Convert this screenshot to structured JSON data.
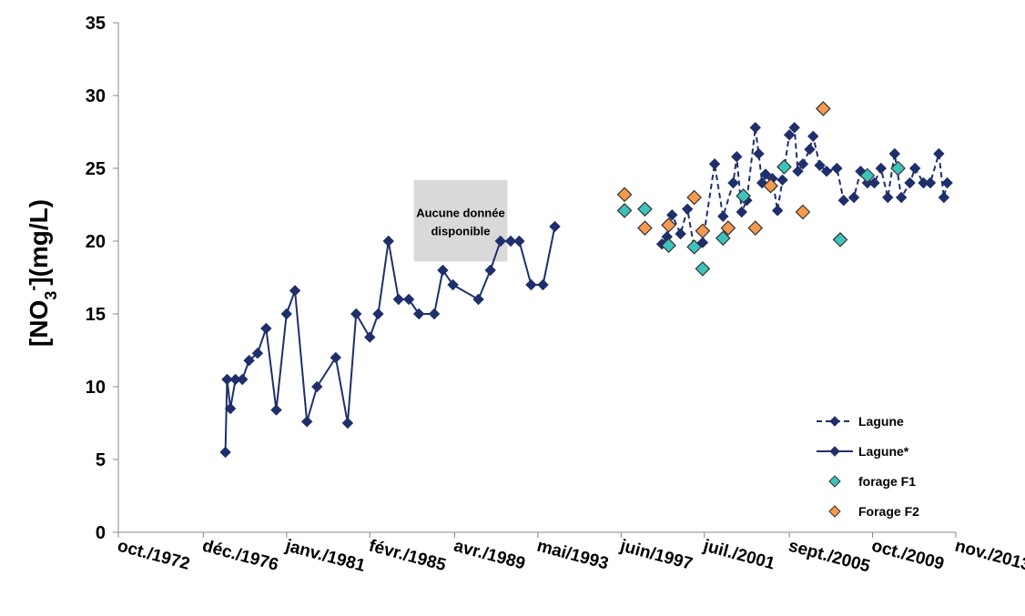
{
  "chart_data": {
    "type": "scatter",
    "title": "",
    "xlabel": "",
    "ylabel": "[NO3-](mg/L)",
    "ylabel_parts": {
      "pre": "[NO",
      "sub": "3",
      "sup": "-",
      "post": "](mg/L)"
    },
    "ylim": [
      0,
      35
    ],
    "yticks": [
      0,
      5,
      10,
      15,
      20,
      25,
      30,
      35
    ],
    "xlim": [
      "1972-10-01",
      "2013-11-01"
    ],
    "xticks": [
      {
        "date": "1972-10-01",
        "label": "oct./1972"
      },
      {
        "date": "1976-12-01",
        "label": "déc./1976"
      },
      {
        "date": "1981-01-01",
        "label": "janv./1981"
      },
      {
        "date": "1985-02-01",
        "label": "févr./1985"
      },
      {
        "date": "1989-04-01",
        "label": "avr./1989"
      },
      {
        "date": "1993-05-01",
        "label": "mai/1993"
      },
      {
        "date": "1997-06-01",
        "label": "juin/1997"
      },
      {
        "date": "2001-07-01",
        "label": "juil./2001"
      },
      {
        "date": "2005-09-01",
        "label": "sept./2005"
      },
      {
        "date": "2009-10-01",
        "label": "oct./2009"
      },
      {
        "date": "2013-11-01",
        "label": "nov./2013"
      }
    ],
    "grid": false,
    "legend_position": "bottom-right",
    "annotation": {
      "line1": "Aucune donnée",
      "line2": "disponible",
      "from": "1987-04-01",
      "to": "1991-11-01",
      "y_top": 24.2,
      "y_bottom": 18.6
    },
    "series": [
      {
        "name": "Lagune",
        "style": "dashed-line-diamond",
        "color": "#1F2F6B",
        "points": [
          [
            "1999-06-01",
            19.8
          ],
          [
            "1999-09-01",
            20.3
          ],
          [
            "1999-12-01",
            21.8
          ],
          [
            "2000-05-01",
            20.5
          ],
          [
            "2000-09-01",
            22.2
          ],
          [
            "2001-01-01",
            19.5
          ],
          [
            "2001-06-01",
            19.9
          ],
          [
            "2002-01-01",
            25.3
          ],
          [
            "2002-06-01",
            21.7
          ],
          [
            "2002-12-01",
            24.0
          ],
          [
            "2003-02-01",
            25.8
          ],
          [
            "2003-05-01",
            22.0
          ],
          [
            "2003-08-01",
            22.8
          ],
          [
            "2004-01-01",
            27.8
          ],
          [
            "2004-03-01",
            26.0
          ],
          [
            "2004-05-01",
            24.0
          ],
          [
            "2004-07-01",
            24.6
          ],
          [
            "2004-09-01",
            23.8
          ],
          [
            "2004-11-01",
            24.3
          ],
          [
            "2005-02-01",
            22.1
          ],
          [
            "2005-05-01",
            24.2
          ],
          [
            "2005-09-01",
            27.3
          ],
          [
            "2005-12-01",
            27.8
          ],
          [
            "2006-02-01",
            24.8
          ],
          [
            "2006-05-01",
            25.3
          ],
          [
            "2006-09-01",
            26.3
          ],
          [
            "2006-11-01",
            27.2
          ],
          [
            "2007-03-01",
            25.2
          ],
          [
            "2007-07-01",
            24.8
          ],
          [
            "2008-01-01",
            25.0
          ],
          [
            "2008-05-01",
            22.8
          ],
          [
            "2008-11-01",
            23.0
          ],
          [
            "2009-03-01",
            24.8
          ],
          [
            "2009-07-01",
            24.0
          ],
          [
            "2009-11-01",
            24.0
          ],
          [
            "2010-03-01",
            25.0
          ],
          [
            "2010-07-01",
            23.0
          ],
          [
            "2010-11-01",
            26.0
          ],
          [
            "2011-03-01",
            23.0
          ],
          [
            "2011-08-01",
            24.0
          ],
          [
            "2011-11-01",
            25.0
          ],
          [
            "2012-04-01",
            24.0
          ],
          [
            "2012-08-01",
            24.0
          ],
          [
            "2013-01-01",
            26.0
          ],
          [
            "2013-04-01",
            23.0
          ],
          [
            "2013-06-01",
            24.0
          ]
        ]
      },
      {
        "name": "Lagune*",
        "style": "solid-line-diamond",
        "color": "#1F2F6B",
        "points": [
          [
            "1978-01-01",
            5.5
          ],
          [
            "1978-02-01",
            10.5
          ],
          [
            "1978-04-01",
            8.5
          ],
          [
            "1978-07-01",
            10.5
          ],
          [
            "1978-11-01",
            10.5
          ],
          [
            "1979-03-01",
            11.8
          ],
          [
            "1979-08-01",
            12.3
          ],
          [
            "1980-01-01",
            14.0
          ],
          [
            "1980-07-01",
            8.4
          ],
          [
            "1981-01-01",
            15.0
          ],
          [
            "1981-06-01",
            16.6
          ],
          [
            "1982-01-01",
            7.6
          ],
          [
            "1982-07-01",
            10.0
          ],
          [
            "1983-06-01",
            12.0
          ],
          [
            "1984-01-01",
            7.5
          ],
          [
            "1984-06-01",
            15.0
          ],
          [
            "1985-02-01",
            13.4
          ],
          [
            "1985-07-01",
            15.0
          ],
          [
            "1986-01-01",
            20.0
          ],
          [
            "1986-07-01",
            16.0
          ],
          [
            "1987-01-01",
            16.0
          ],
          [
            "1987-07-01",
            15.0
          ],
          [
            "1988-04-01",
            15.0
          ],
          [
            "1988-09-01",
            18.0
          ],
          [
            "1989-03-01",
            17.0
          ],
          [
            "1990-06-01",
            16.0
          ],
          [
            "1991-01-01",
            18.0
          ],
          [
            "1991-07-01",
            20.0
          ],
          [
            "1992-01-01",
            20.0
          ],
          [
            "1992-06-01",
            20.0
          ],
          [
            "1993-01-01",
            17.0
          ],
          [
            "1993-08-01",
            17.0
          ],
          [
            "1994-03-01",
            21.0
          ]
        ]
      },
      {
        "name": "forage F1",
        "style": "marker-diamond",
        "color": "#3EC3BC",
        "points": [
          [
            "1997-08-01",
            22.1
          ],
          [
            "1998-08-01",
            22.2
          ],
          [
            "1999-10-01",
            19.7
          ],
          [
            "2001-01-01",
            19.6
          ],
          [
            "2001-06-01",
            18.1
          ],
          [
            "2002-06-01",
            20.2
          ],
          [
            "2003-06-01",
            23.1
          ],
          [
            "2005-06-01",
            25.1
          ],
          [
            "2008-03-01",
            20.1
          ],
          [
            "2009-07-01",
            24.5
          ],
          [
            "2011-01-01",
            25.0
          ]
        ]
      },
      {
        "name": "Forage F2",
        "style": "marker-diamond",
        "color": "#F59A4F",
        "points": [
          [
            "1997-08-01",
            23.2
          ],
          [
            "1998-08-01",
            20.9
          ],
          [
            "1999-10-01",
            21.1
          ],
          [
            "2001-01-01",
            23.0
          ],
          [
            "2001-06-01",
            20.7
          ],
          [
            "2002-09-01",
            20.9
          ],
          [
            "2004-01-01",
            20.9
          ],
          [
            "2004-10-01",
            23.8
          ],
          [
            "2006-05-01",
            22.0
          ],
          [
            "2007-05-01",
            29.1
          ]
        ]
      }
    ]
  }
}
